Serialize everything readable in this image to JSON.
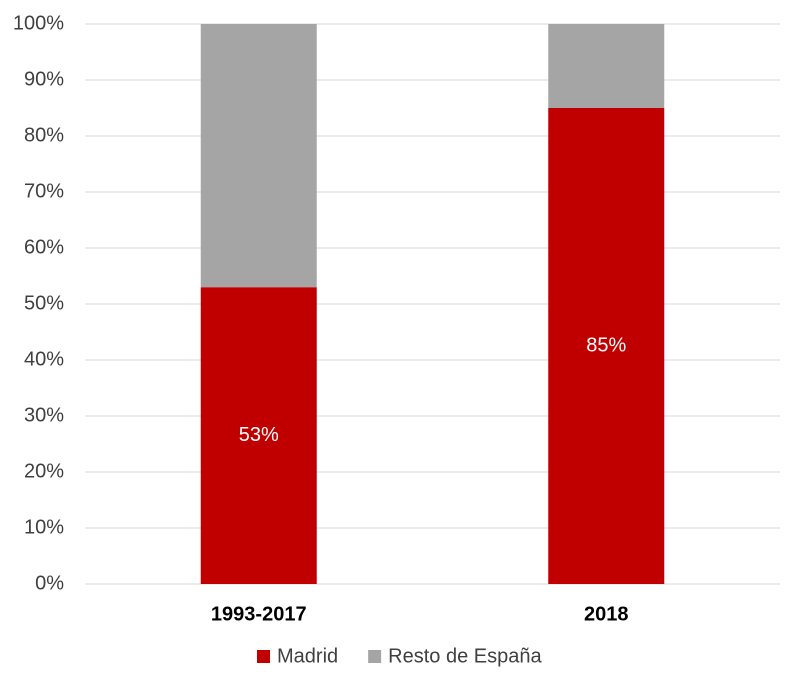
{
  "chart_data": {
    "type": "stacked_bar",
    "categories": [
      "1993-2017",
      "2018"
    ],
    "series": [
      {
        "name": "Madrid",
        "color": "#c00000",
        "values": [
          53,
          85
        ],
        "value_labels": [
          "53%",
          "85%"
        ]
      },
      {
        "name": "Resto de España",
        "color": "#a5a5a5",
        "values": [
          47,
          15
        ]
      }
    ],
    "ylim": [
      0,
      100
    ],
    "yticks": [
      {
        "value": 0,
        "label": "0%"
      },
      {
        "value": 10,
        "label": "10%"
      },
      {
        "value": 20,
        "label": "20%"
      },
      {
        "value": 30,
        "label": "30%"
      },
      {
        "value": 40,
        "label": "40%"
      },
      {
        "value": 50,
        "label": "50%"
      },
      {
        "value": 60,
        "label": "60%"
      },
      {
        "value": 70,
        "label": "70%"
      },
      {
        "value": 80,
        "label": "80%"
      },
      {
        "value": 90,
        "label": "90%"
      },
      {
        "value": 100,
        "label": "100%"
      }
    ],
    "grid": true,
    "legend": "bottom"
  }
}
